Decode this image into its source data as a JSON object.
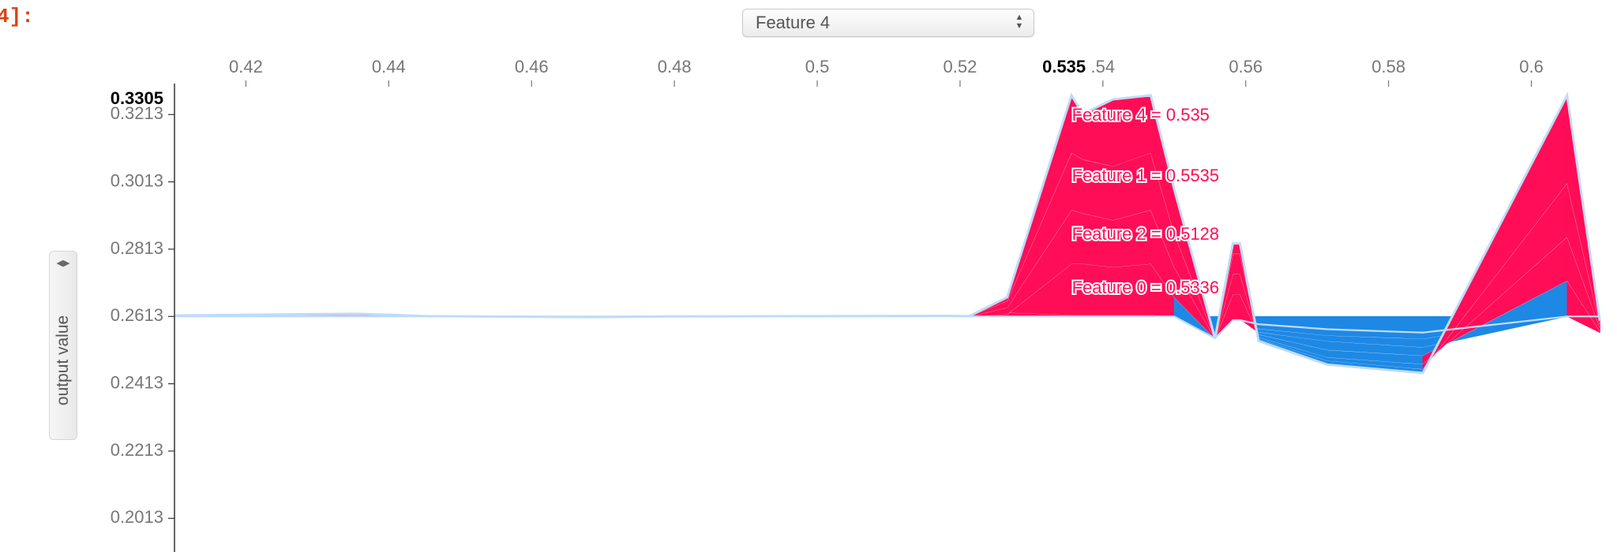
{
  "cell_prompt": "4]:",
  "feature_select": {
    "selected": "Feature 4",
    "options": [
      "Feature 4"
    ]
  },
  "yaxis_toggle": {
    "label": "output value"
  },
  "colors": {
    "positive": "#ff0d57",
    "negative": "#1e88e5",
    "outline": "#bfdcf7",
    "separator": "#ffffff",
    "axis": "#333333",
    "tick_text": "#777777"
  },
  "chart_data": {
    "type": "area",
    "xlim": [
      0.41,
      0.61
    ],
    "ylim": [
      0.1913,
      0.3305
    ],
    "x_ticks": [
      "0.42",
      "0.44",
      "0.46",
      "0.48",
      "0.5",
      "0.52",
      ".54",
      "0.56",
      "0.58",
      "0.6"
    ],
    "x_tick_values": [
      0.42,
      0.44,
      0.46,
      0.48,
      0.5,
      0.52,
      0.54,
      0.56,
      0.58,
      0.6
    ],
    "x_highlight": "0.535",
    "x_highlight_value": 0.535,
    "y_ticks": [
      "0.3213",
      "0.3013",
      "0.2813",
      "0.2613",
      "0.2413",
      "0.2213",
      "0.2013"
    ],
    "y_tick_values": [
      0.3213,
      0.3013,
      0.2813,
      0.2613,
      0.2413,
      0.2213,
      0.2013
    ],
    "y_top_label": "0.3305",
    "base_value": 0.2613,
    "annotations": [
      {
        "text": "Feature 4 = 0.535",
        "value": 0.3208
      },
      {
        "text": "Feature 1 = 0.5535",
        "value": 0.3028
      },
      {
        "text": "Feature 2 = 0.5128",
        "value": 0.2855
      },
      {
        "text": "Feature 0 = 0.5336",
        "value": 0.2695
      }
    ],
    "x": [
      0.41,
      0.4356,
      0.4453,
      0.4603,
      0.4685,
      0.4794,
      0.4978,
      0.5181,
      0.5213,
      0.5266,
      0.5356,
      0.5372,
      0.5414,
      0.5467,
      0.55,
      0.5557,
      0.5582,
      0.5592,
      0.5618,
      0.5714,
      0.5848,
      0.605,
      0.6096
    ],
    "layers": [
      [
        0.2613,
        0.2613,
        0.2613,
        0.2613,
        0.2613,
        0.2613,
        0.2613,
        0.2613,
        0.2613,
        0.2613,
        0.2613,
        0.2613,
        0.2613,
        0.2613,
        0.2613,
        0.2548,
        0.2602,
        0.2602,
        0.259,
        0.2575,
        0.2565,
        0.2613,
        0.2613
      ],
      [
        0.2613,
        0.2613,
        0.2613,
        0.2613,
        0.2613,
        0.2613,
        0.2613,
        0.2613,
        0.2613,
        0.2613,
        0.2613,
        0.2613,
        0.2613,
        0.2613,
        0.2613,
        0.2548,
        0.2602,
        0.2602,
        0.2575,
        0.2555,
        0.2545,
        0.2613,
        0.2613
      ],
      [
        0.2615,
        0.2617,
        0.2613,
        0.2612,
        0.2612,
        0.2613,
        0.2614,
        0.2615,
        0.2613,
        0.2625,
        0.2618,
        0.2618,
        0.2618,
        0.2618,
        0.2613,
        0.2548,
        0.2605,
        0.2605,
        0.2565,
        0.2538,
        0.252,
        0.2613,
        0.2565
      ],
      [
        0.2615,
        0.2617,
        0.2613,
        0.2612,
        0.2612,
        0.2613,
        0.2614,
        0.2615,
        0.2613,
        0.262,
        0.277,
        0.277,
        0.276,
        0.277,
        0.267,
        0.2548,
        0.268,
        0.268,
        0.2558,
        0.2512,
        0.2495,
        0.272,
        0.257
      ],
      [
        0.2615,
        0.2618,
        0.2613,
        0.2612,
        0.2612,
        0.2613,
        0.2614,
        0.2615,
        0.2613,
        0.264,
        0.293,
        0.292,
        0.29,
        0.293,
        0.276,
        0.2548,
        0.274,
        0.274,
        0.255,
        0.249,
        0.247,
        0.285,
        0.258
      ],
      [
        0.2616,
        0.262,
        0.2614,
        0.2612,
        0.2611,
        0.2613,
        0.2614,
        0.2615,
        0.2614,
        0.266,
        0.31,
        0.308,
        0.306,
        0.31,
        0.286,
        0.2548,
        0.28,
        0.28,
        0.2545,
        0.248,
        0.2455,
        0.301,
        0.259
      ],
      [
        0.2616,
        0.2621,
        0.2614,
        0.2612,
        0.2611,
        0.2613,
        0.2614,
        0.2615,
        0.2614,
        0.267,
        0.327,
        0.3215,
        0.3258,
        0.327,
        0.299,
        0.2548,
        0.283,
        0.283,
        0.254,
        0.247,
        0.2445,
        0.327,
        0.26
      ]
    ],
    "layer_signs": [
      "negative",
      "negative",
      "mixed",
      "mixed",
      "mixed",
      "mixed",
      "mixed"
    ]
  }
}
